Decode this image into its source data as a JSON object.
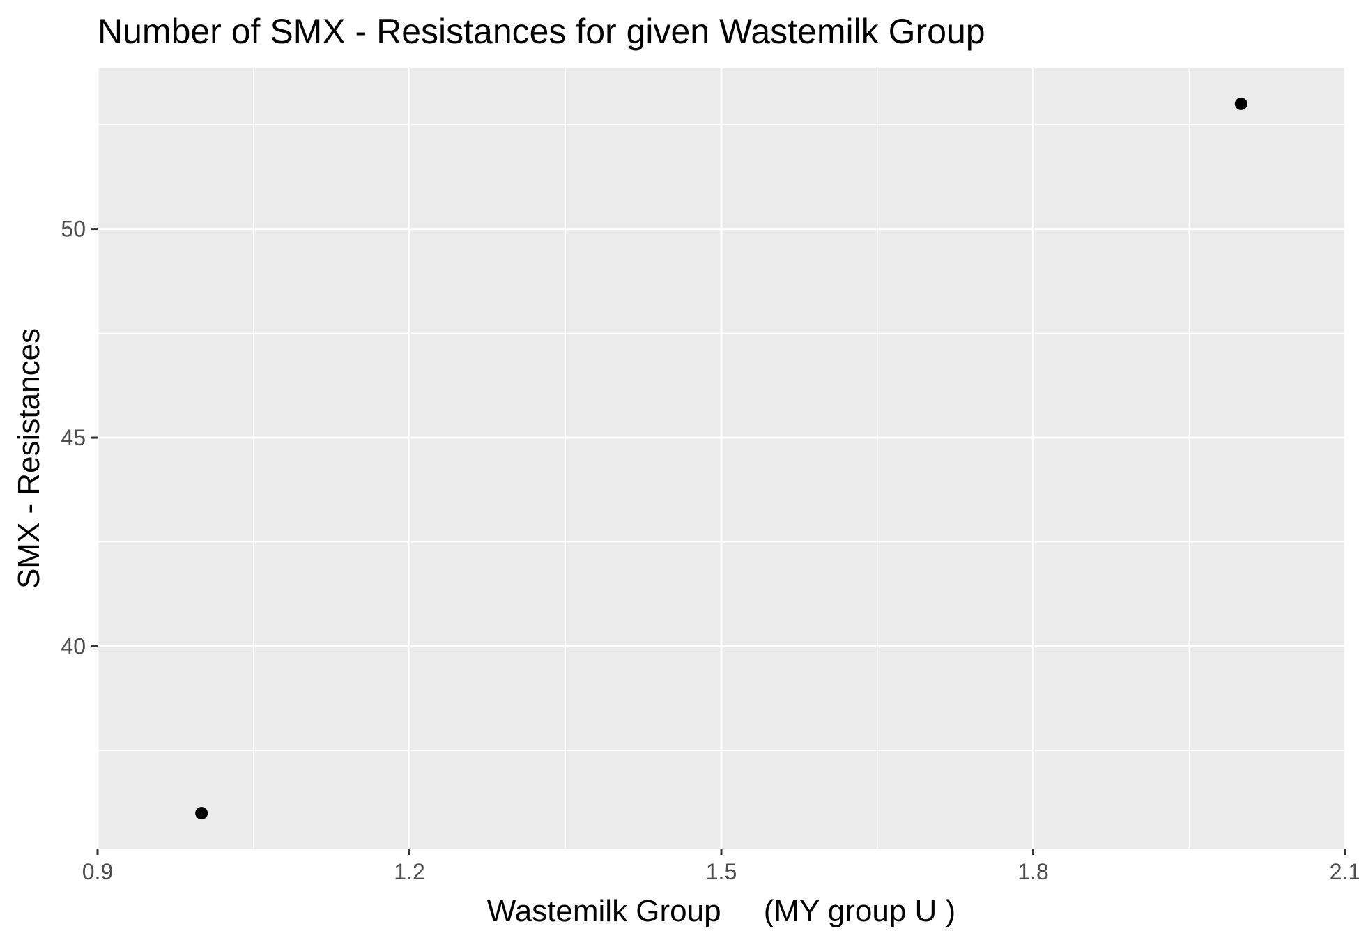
{
  "chart_data": {
    "type": "scatter",
    "title": "Number of SMX - Resistances for given Wastemilk Group",
    "xlabel": "Wastemilk Group     (MY group U )",
    "ylabel": "SMX - Resistances",
    "x": [
      1,
      2
    ],
    "y": [
      36,
      53
    ],
    "xlim": [
      0.9,
      2.1
    ],
    "ylim": [
      35.15,
      53.85
    ],
    "x_ticks": [
      0.9,
      1.2,
      1.5,
      1.8,
      2.1
    ],
    "x_tick_labels": [
      "0.9",
      "1.2",
      "1.5",
      "1.8",
      "2.1"
    ],
    "y_ticks": [
      40,
      45,
      50
    ],
    "y_tick_labels": [
      "40",
      "45",
      "50"
    ],
    "grid": true,
    "legend": "none",
    "colors": {
      "panel": "#ebebeb",
      "grid": "#ffffff",
      "point": "#000000",
      "tick": "#333333",
      "tick_text": "#4d4d4d"
    }
  }
}
